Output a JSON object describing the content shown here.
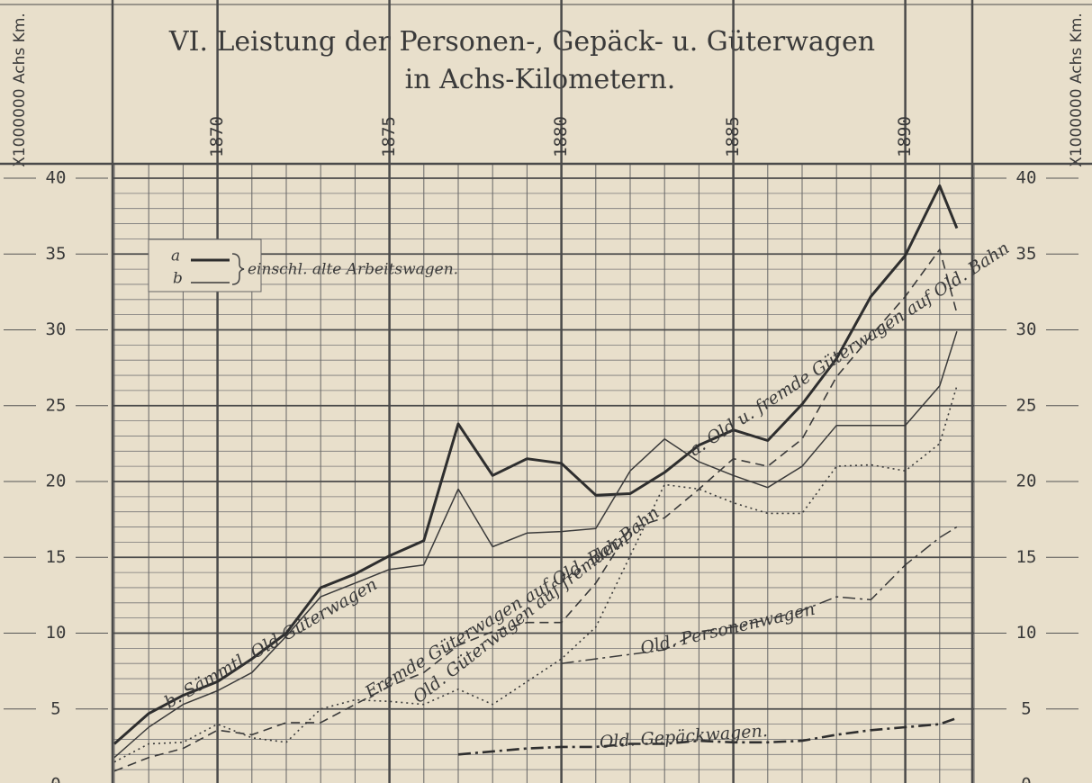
{
  "chart_data": {
    "type": "line",
    "title": "VI. Leistung der Personen-, Gepäck- u. Güterwagen",
    "subtitle": "in Achs-Kilometern.",
    "y_label": "X1000000 Achs Km.",
    "legend": {
      "a": "a",
      "b": "b",
      "note": "einschl. alte Arbeitswagen."
    },
    "x": [
      1867,
      1868,
      1869,
      1870,
      1871,
      1872,
      1873,
      1874,
      1875,
      1876,
      1877,
      1878,
      1879,
      1880,
      1881,
      1882,
      1883,
      1884,
      1885,
      1886,
      1887,
      1888,
      1889,
      1890,
      1891,
      1891.5
    ],
    "xlim": [
      1867,
      1892
    ],
    "xticks": [
      1870,
      1875,
      1880,
      1885,
      1890
    ],
    "ylim": [
      0,
      40
    ],
    "yticks": [
      0,
      5,
      10,
      15,
      20,
      25,
      30,
      35,
      40
    ],
    "grid": true,
    "series": [
      {
        "name": "a. Old u. fremde Güterwagen auf Old. Bahn",
        "color": "#2e2e2e",
        "dash": "solid",
        "width": 3,
        "values": [
          2.7,
          4.7,
          5.9,
          6.8,
          8.3,
          10,
          13,
          13.9,
          15.1,
          16.1,
          23.8,
          20.4,
          21.5,
          21.2,
          19.1,
          19.2,
          20.6,
          22.4,
          23.4,
          22.7,
          25.1,
          28.1,
          32.2,
          34.9,
          39.5,
          36.7
        ]
      },
      {
        "name": "b. Sämmtl. Old Güterwagen",
        "color": "#3a3a3a",
        "dash": "solid",
        "width": 1.5,
        "values": [
          1.8,
          3.8,
          5.3,
          6.2,
          7.4,
          9.8,
          12.4,
          13.3,
          14.2,
          14.5,
          19.5,
          15.7,
          16.6,
          16.7,
          16.9,
          20.7,
          22.8,
          21.3,
          20.4,
          19.6,
          21,
          23.7,
          23.7,
          23.7,
          26.3,
          29.9
        ]
      },
      {
        "name": "Fremde Güterwagen auf Old. Bahn",
        "color": "#3a3a3a",
        "dash": "dashed",
        "width": 1.6,
        "values": [
          0.9,
          1.8,
          2.4,
          3.6,
          3.3,
          4.1,
          4.1,
          5.3,
          6.5,
          7.4,
          9.2,
          10.1,
          10.7,
          10.7,
          13.3,
          16.9,
          17.6,
          19.5,
          21.5,
          21,
          22.8,
          26.9,
          29.6,
          32.2,
          35.3,
          31.1
        ]
      },
      {
        "name": "Old. Güterwagen auf fremder Bahn",
        "color": "#3a3a3a",
        "dash": "dotted",
        "width": 1.6,
        "values": [
          1.5,
          2.7,
          2.8,
          4,
          3.1,
          2.8,
          5,
          5.6,
          5.5,
          5.3,
          6.3,
          5.3,
          6.8,
          8.3,
          10.4,
          15.1,
          19.8,
          19.5,
          18.6,
          17.9,
          17.9,
          21,
          21.1,
          20.7,
          22.5,
          26.3
        ]
      },
      {
        "name": "Old. Personenwagen",
        "color": "#3a3a3a",
        "dash": "dashdot",
        "width": 1.5,
        "values": [
          null,
          null,
          null,
          null,
          null,
          null,
          null,
          null,
          null,
          null,
          null,
          null,
          null,
          8,
          8.3,
          8.6,
          8.9,
          10.1,
          10.4,
          10.9,
          11.5,
          12.4,
          12.2,
          14.5,
          16.3,
          17
        ]
      },
      {
        "name": "Old. Gepäckwagen.",
        "color": "#2e2e2e",
        "dash": "dashdot",
        "width": 2.6,
        "values": [
          null,
          null,
          null,
          null,
          null,
          null,
          null,
          null,
          null,
          null,
          2,
          2.2,
          2.4,
          2.5,
          2.5,
          2.7,
          2.7,
          2.9,
          2.8,
          2.8,
          2.9,
          3.3,
          3.6,
          3.8,
          4,
          4.4
        ]
      }
    ]
  }
}
